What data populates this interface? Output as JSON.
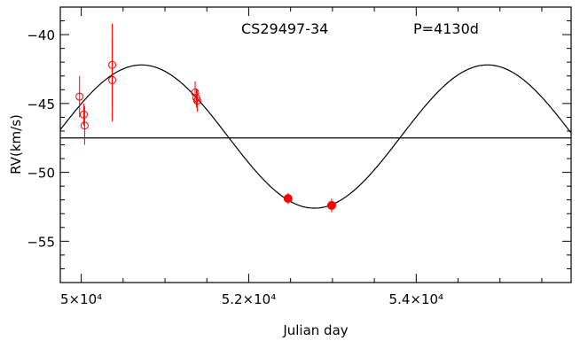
{
  "chart_data": {
    "type": "scatter",
    "title_left": "CS29497-34",
    "title_right": "P=4130d",
    "xlabel": "Julian day",
    "ylabel": "RV(km/s)",
    "xlim": [
      49750,
      55850
    ],
    "ylim": [
      -58,
      -38
    ],
    "x_ticks": [
      {
        "value": 50000,
        "label": "5×10⁴"
      },
      {
        "value": 52000,
        "label": "5.2×10⁴"
      },
      {
        "value": 54000,
        "label": "5.4×10⁴"
      }
    ],
    "y_ticks": [
      {
        "value": -40,
        "label": "−40"
      },
      {
        "value": -45,
        "label": "−45"
      },
      {
        "value": -50,
        "label": "−50"
      },
      {
        "value": -55,
        "label": "−55"
      }
    ],
    "systemic_velocity": -47.5,
    "orbit_fit": {
      "type": "sinusoid",
      "period_days": 4130,
      "gamma": -47.4,
      "semi_amplitude": 5.2,
      "t_max": 50720
    },
    "series": [
      {
        "marker": "open-circle",
        "color": "#ff0000",
        "points": [
          {
            "x": 49980,
            "y": -44.5,
            "err": 1.5
          },
          {
            "x": 50030,
            "y": -45.8,
            "err": 0.8
          },
          {
            "x": 50040,
            "y": -46.6,
            "err": 1.4
          },
          {
            "x": 50370,
            "y": -42.2,
            "err": 3.0
          },
          {
            "x": 50370,
            "y": -43.3,
            "err": 3.0
          },
          {
            "x": 51360,
            "y": -44.2,
            "err": 0.8
          },
          {
            "x": 51375,
            "y": -44.6,
            "err": 0.7
          },
          {
            "x": 51385,
            "y": -44.8,
            "err": 0.8
          }
        ]
      },
      {
        "marker": "filled-circle",
        "color": "#ff0000",
        "points": [
          {
            "x": 52470,
            "y": -51.9,
            "err": 0.4
          },
          {
            "x": 52990,
            "y": -52.4,
            "err": 0.5
          }
        ]
      }
    ]
  }
}
